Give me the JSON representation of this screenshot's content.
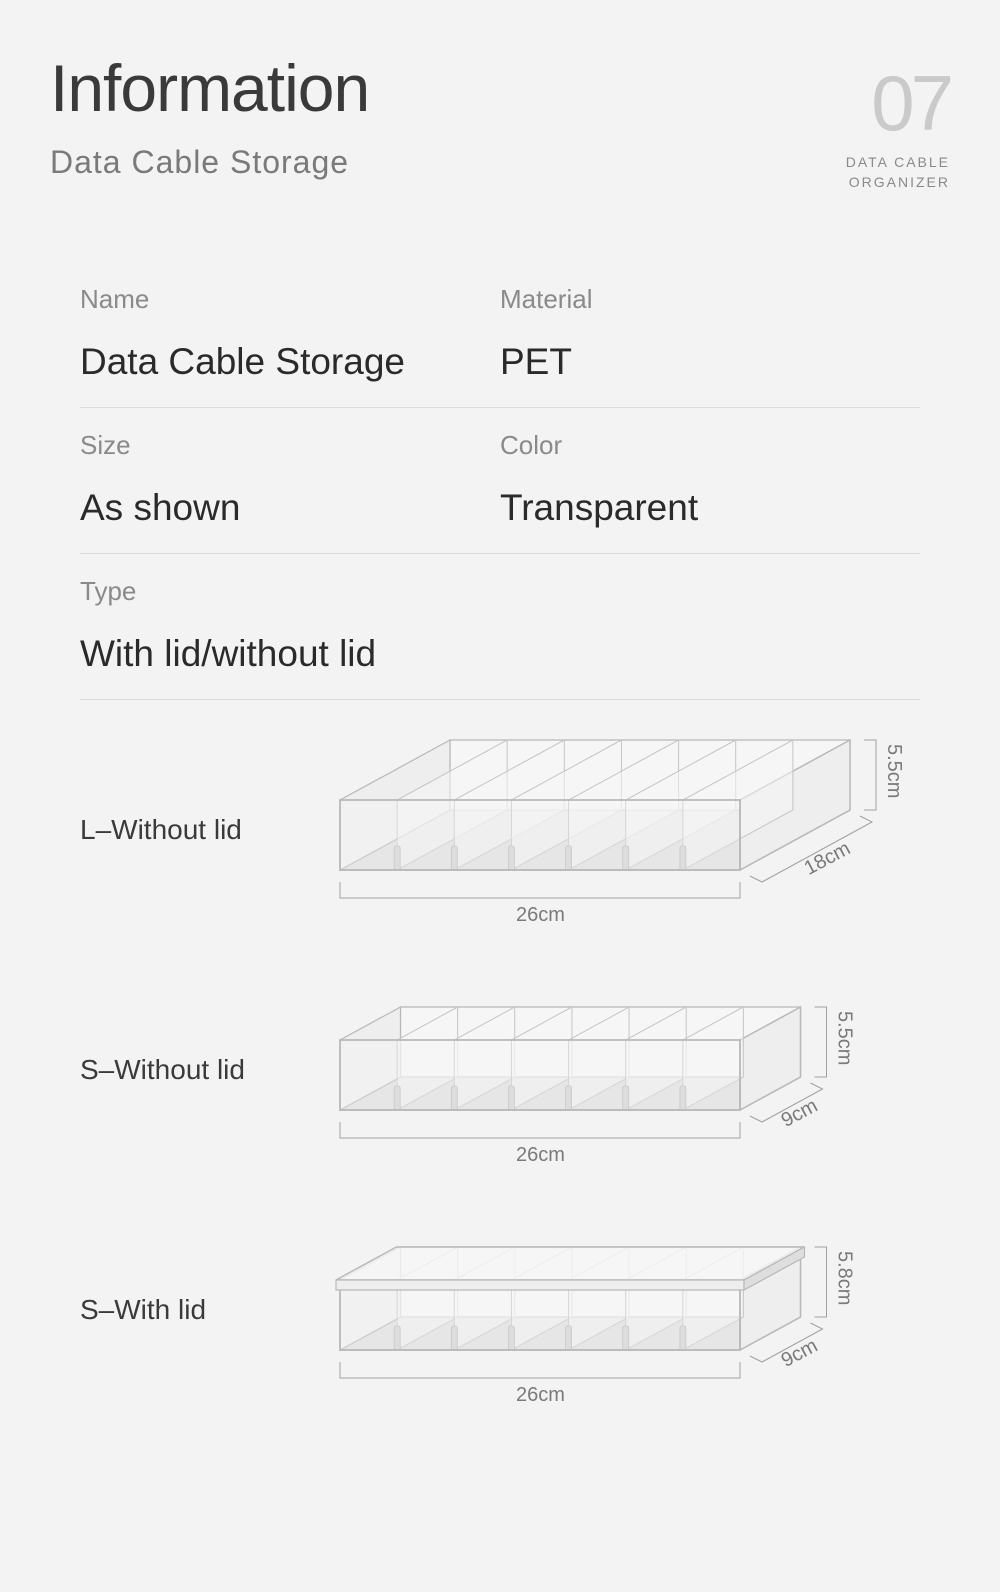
{
  "header": {
    "title": "Information",
    "subtitle": "Data Cable Storage",
    "number": "07",
    "caption_line1": "DATA CABLE",
    "caption_line2": "ORGANIZER"
  },
  "specs": [
    {
      "label": "Name",
      "value": "Data Cable Storage",
      "label2": "Material",
      "value2": "PET"
    },
    {
      "label": "Size",
      "value": "As shown",
      "label2": "Color",
      "value2": "Transparent"
    },
    {
      "label": "Type",
      "value": "With lid/without lid"
    }
  ],
  "products": [
    {
      "label": "L–Without lid",
      "width_cm": "26cm",
      "depth_cm": "18cm",
      "height_cm": "5.5cm",
      "slots": 7,
      "lid": false,
      "depth_ratio": 1.0
    },
    {
      "label": "S–Without lid",
      "width_cm": "26cm",
      "depth_cm": "9cm",
      "height_cm": "5.5cm",
      "slots": 7,
      "lid": false,
      "depth_ratio": 0.55
    },
    {
      "label": "S–With lid",
      "width_cm": "26cm",
      "depth_cm": "9cm",
      "height_cm": "5.8cm",
      "slots": 7,
      "lid": true,
      "depth_ratio": 0.55
    }
  ],
  "style": {
    "box_stroke": "#b8b8b8",
    "box_fill": "#eeeeee",
    "box_fill_dark": "#dedede",
    "box_fill_light": "#f6f6f6",
    "divider_stroke": "#c4c4c4",
    "dim_bracket": "#a0a0a0",
    "dim_text": "#7a7a7a"
  }
}
